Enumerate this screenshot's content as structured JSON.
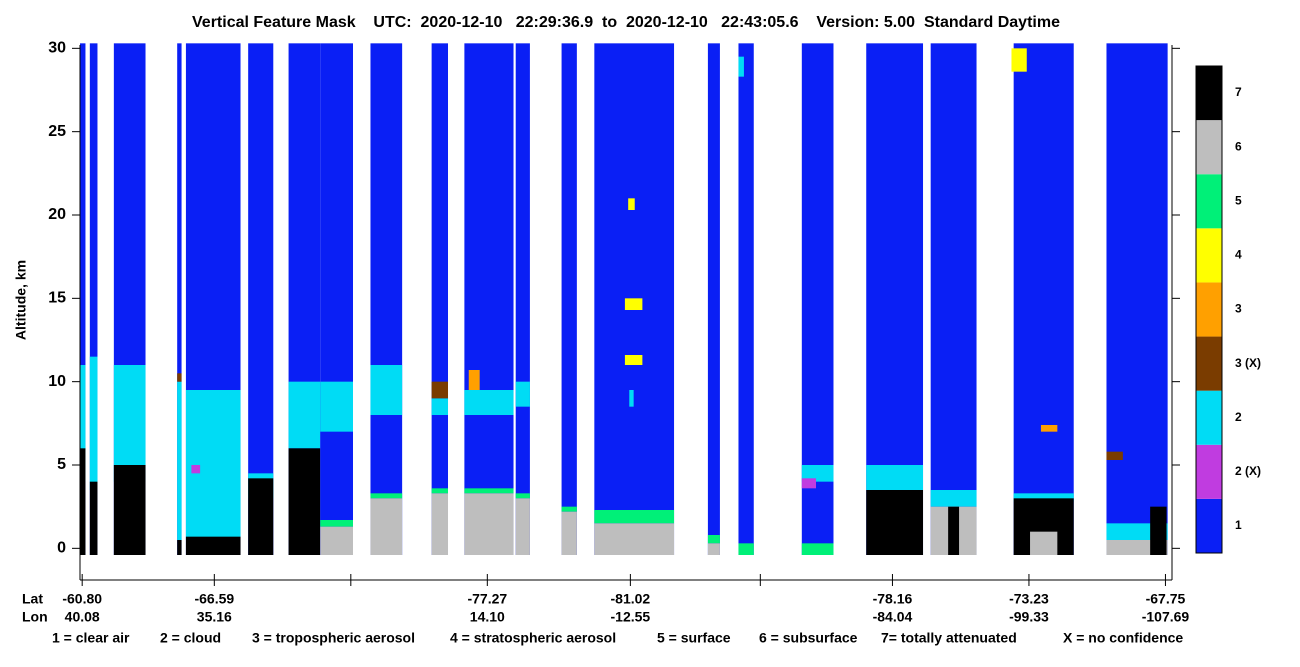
{
  "chart_data": {
    "type": "curtain",
    "title": "Vertical Feature Mask    UTC:  2020-12-10   22:29:36.9  to  2020-12-10   22:43:05.6    Version: 5.00  Standard Daytime",
    "ylabel": "Altitude, km",
    "ylim": [
      -1.9,
      30.2
    ],
    "yticks": [
      0,
      5,
      10,
      15,
      20,
      25,
      30
    ],
    "xlim": [
      0,
      100
    ],
    "xticks": [
      0.2,
      12.3,
      24.8,
      37.3,
      50.4,
      62.3,
      74.4,
      86.9,
      99.4
    ],
    "lat_header": "Lat",
    "lon_header": "Lon",
    "lat_labels": [
      "-60.80",
      "-66.59",
      null,
      "-77.27",
      "-81.02",
      null,
      "-78.16",
      "-73.23",
      "-67.75"
    ],
    "lon_labels": [
      "40.08",
      "35.16",
      null,
      "14.10",
      "-12.55",
      null,
      "-84.04",
      "-99.33",
      "-107.69"
    ],
    "levels": [
      {
        "label": "1",
        "color": "#0a1ff5"
      },
      {
        "label": "2 (X)",
        "color": "#c03ce0"
      },
      {
        "label": "2",
        "color": "#00dcf5"
      },
      {
        "label": "3 (X)",
        "color": "#7a3c00"
      },
      {
        "label": "3",
        "color": "#ffa000"
      },
      {
        "label": "4",
        "color": "#ffff00"
      },
      {
        "label": "5",
        "color": "#00f078"
      },
      {
        "label": "6",
        "color": "#bebebe"
      },
      {
        "label": "7",
        "color": "#000000"
      }
    ],
    "features": [
      {
        "class": 0,
        "x": [
          0,
          0.5
        ],
        "y": [
          -0.4,
          30.3
        ]
      },
      {
        "class": 2,
        "x": [
          0,
          0.5
        ],
        "y": [
          4,
          11
        ]
      },
      {
        "class": 8,
        "x": [
          0,
          0.5
        ],
        "y": [
          -0.4,
          6
        ]
      },
      {
        "class": 0,
        "x": [
          0.9,
          1.6
        ],
        "y": [
          -0.4,
          30.3
        ]
      },
      {
        "class": 2,
        "x": [
          0.9,
          1.6
        ],
        "y": [
          3.5,
          11.5
        ]
      },
      {
        "class": 8,
        "x": [
          0.9,
          1.6
        ],
        "y": [
          -0.4,
          4
        ]
      },
      {
        "class": 0,
        "x": [
          3.1,
          6.0
        ],
        "y": [
          -0.4,
          30.3
        ]
      },
      {
        "class": 2,
        "x": [
          3.1,
          6.0
        ],
        "y": [
          4,
          11
        ]
      },
      {
        "class": 8,
        "x": [
          3.1,
          6.0
        ],
        "y": [
          -0.4,
          5
        ]
      },
      {
        "class": 0,
        "x": [
          8.9,
          9.3
        ],
        "y": [
          -0.4,
          30.3
        ]
      },
      {
        "class": 2,
        "x": [
          8.9,
          9.3
        ],
        "y": [
          0.5,
          10
        ]
      },
      {
        "class": 3,
        "x": [
          8.9,
          9.3
        ],
        "y": [
          10,
          10.5
        ]
      },
      {
        "class": 8,
        "x": [
          8.9,
          9.3
        ],
        "y": [
          -0.4,
          0.5
        ]
      },
      {
        "class": 0,
        "x": [
          9.7,
          14.7
        ],
        "y": [
          -0.4,
          30.3
        ]
      },
      {
        "class": 2,
        "x": [
          9.7,
          14.7
        ],
        "y": [
          0.5,
          9.5
        ]
      },
      {
        "class": 1,
        "x": [
          10.2,
          11.0
        ],
        "y": [
          4.5,
          5
        ]
      },
      {
        "class": 8,
        "x": [
          9.7,
          14.7
        ],
        "y": [
          -0.4,
          0.7
        ]
      },
      {
        "class": 0,
        "x": [
          15.4,
          17.7
        ],
        "y": [
          -0.4,
          30.3
        ]
      },
      {
        "class": 2,
        "x": [
          15.4,
          17.7
        ],
        "y": [
          3,
          4.5
        ]
      },
      {
        "class": 8,
        "x": [
          15.4,
          17.7
        ],
        "y": [
          -0.4,
          4.2
        ]
      },
      {
        "class": 0,
        "x": [
          19.1,
          22.0
        ],
        "y": [
          -0.4,
          30.3
        ]
      },
      {
        "class": 2,
        "x": [
          19.1,
          22.0
        ],
        "y": [
          6,
          10
        ]
      },
      {
        "class": 8,
        "x": [
          19.1,
          22.0
        ],
        "y": [
          -0.4,
          6
        ]
      },
      {
        "class": 0,
        "x": [
          22.0,
          25.0
        ],
        "y": [
          -0.4,
          30.3
        ]
      },
      {
        "class": 2,
        "x": [
          22.0,
          25.0
        ],
        "y": [
          7,
          10
        ]
      },
      {
        "class": 6,
        "x": [
          22.0,
          25.0
        ],
        "y": [
          1.3,
          1.7
        ]
      },
      {
        "class": 7,
        "x": [
          22.0,
          25.0
        ],
        "y": [
          -0.4,
          1.3
        ]
      },
      {
        "class": 0,
        "x": [
          26.6,
          29.5
        ],
        "y": [
          -0.4,
          30.3
        ]
      },
      {
        "class": 2,
        "x": [
          26.6,
          29.5
        ],
        "y": [
          8,
          11
        ]
      },
      {
        "class": 6,
        "x": [
          26.6,
          29.5
        ],
        "y": [
          3,
          3.3
        ]
      },
      {
        "class": 7,
        "x": [
          26.6,
          29.5
        ],
        "y": [
          -0.4,
          3
        ]
      },
      {
        "class": 0,
        "x": [
          32.2,
          33.7
        ],
        "y": [
          -0.4,
          30.3
        ]
      },
      {
        "class": 2,
        "x": [
          32.2,
          33.7
        ],
        "y": [
          8,
          9
        ]
      },
      {
        "class": 3,
        "x": [
          32.2,
          33.7
        ],
        "y": [
          9,
          10
        ]
      },
      {
        "class": 6,
        "x": [
          32.2,
          33.7
        ],
        "y": [
          3.3,
          3.6
        ]
      },
      {
        "class": 7,
        "x": [
          32.2,
          33.7
        ],
        "y": [
          -0.4,
          3.3
        ]
      },
      {
        "class": 0,
        "x": [
          35.2,
          39.7
        ],
        "y": [
          -0.4,
          30.3
        ]
      },
      {
        "class": 2,
        "x": [
          35.2,
          39.7
        ],
        "y": [
          8,
          9.5
        ]
      },
      {
        "class": 4,
        "x": [
          35.6,
          36.6
        ],
        "y": [
          9.5,
          10.7
        ]
      },
      {
        "class": 6,
        "x": [
          35.2,
          39.7
        ],
        "y": [
          3.3,
          3.6
        ]
      },
      {
        "class": 7,
        "x": [
          35.2,
          39.7
        ],
        "y": [
          -0.4,
          3.3
        ]
      },
      {
        "class": 0,
        "x": [
          39.9,
          41.2
        ],
        "y": [
          -0.4,
          30.3
        ]
      },
      {
        "class": 2,
        "x": [
          39.9,
          41.2
        ],
        "y": [
          8.5,
          10
        ]
      },
      {
        "class": 6,
        "x": [
          39.9,
          41.2
        ],
        "y": [
          3,
          3.3
        ]
      },
      {
        "class": 7,
        "x": [
          39.9,
          41.2
        ],
        "y": [
          -0.4,
          3
        ]
      },
      {
        "class": 0,
        "x": [
          44.1,
          45.5
        ],
        "y": [
          -0.4,
          30.3
        ]
      },
      {
        "class": 6,
        "x": [
          44.1,
          45.5
        ],
        "y": [
          2.2,
          2.5
        ]
      },
      {
        "class": 7,
        "x": [
          44.1,
          45.5
        ],
        "y": [
          -0.4,
          2.2
        ]
      },
      {
        "class": 0,
        "x": [
          47.1,
          54.4
        ],
        "y": [
          -0.4,
          30.3
        ]
      },
      {
        "class": 5,
        "x": [
          50.2,
          50.8
        ],
        "y": [
          20.3,
          21
        ]
      },
      {
        "class": 5,
        "x": [
          49.9,
          51.5
        ],
        "y": [
          14.3,
          15
        ]
      },
      {
        "class": 5,
        "x": [
          49.9,
          51.5
        ],
        "y": [
          11,
          11.6
        ]
      },
      {
        "class": 2,
        "x": [
          50.3,
          50.7
        ],
        "y": [
          8.5,
          9.5
        ]
      },
      {
        "class": 6,
        "x": [
          47.1,
          54.4
        ],
        "y": [
          1.5,
          2.3
        ]
      },
      {
        "class": 7,
        "x": [
          47.1,
          54.4
        ],
        "y": [
          -0.4,
          1.5
        ]
      },
      {
        "class": 0,
        "x": [
          57.5,
          58.6
        ],
        "y": [
          -0.4,
          30.3
        ]
      },
      {
        "class": 6,
        "x": [
          57.5,
          58.6
        ],
        "y": [
          0.3,
          0.8
        ]
      },
      {
        "class": 7,
        "x": [
          57.5,
          58.6
        ],
        "y": [
          -0.4,
          0.3
        ]
      },
      {
        "class": 0,
        "x": [
          60.3,
          61.7
        ],
        "y": [
          -0.4,
          30.3
        ]
      },
      {
        "class": 2,
        "x": [
          60.3,
          60.8
        ],
        "y": [
          28.3,
          29.5
        ]
      },
      {
        "class": 6,
        "x": [
          60.3,
          61.7
        ],
        "y": [
          -0.4,
          0.3
        ]
      },
      {
        "class": 0,
        "x": [
          66.1,
          69.0
        ],
        "y": [
          -0.4,
          30.3
        ]
      },
      {
        "class": 2,
        "x": [
          66.1,
          69.0
        ],
        "y": [
          4,
          5
        ]
      },
      {
        "class": 1,
        "x": [
          66.1,
          67.4
        ],
        "y": [
          3.6,
          4.2
        ]
      },
      {
        "class": 6,
        "x": [
          66.1,
          69.0
        ],
        "y": [
          -0.4,
          0.3
        ]
      },
      {
        "class": 0,
        "x": [
          72.0,
          77.2
        ],
        "y": [
          -0.4,
          30.3
        ]
      },
      {
        "class": 2,
        "x": [
          72.0,
          77.2
        ],
        "y": [
          3.5,
          5
        ]
      },
      {
        "class": 8,
        "x": [
          72.0,
          77.2
        ],
        "y": [
          -0.4,
          3.5
        ]
      },
      {
        "class": 0,
        "x": [
          77.9,
          82.1
        ],
        "y": [
          -0.4,
          30.3
        ]
      },
      {
        "class": 2,
        "x": [
          77.9,
          82.1
        ],
        "y": [
          2.5,
          3.5
        ]
      },
      {
        "class": 7,
        "x": [
          77.9,
          82.1
        ],
        "y": [
          -0.4,
          2.5
        ]
      },
      {
        "class": 8,
        "x": [
          79.5,
          80.5
        ],
        "y": [
          -0.4,
          2.5
        ]
      },
      {
        "class": 0,
        "x": [
          85.5,
          91.0
        ],
        "y": [
          -0.4,
          30.3
        ]
      },
      {
        "class": 5,
        "x": [
          85.3,
          86.7
        ],
        "y": [
          28.6,
          30
        ]
      },
      {
        "class": 4,
        "x": [
          88.0,
          89.5
        ],
        "y": [
          7,
          7.4
        ]
      },
      {
        "class": 2,
        "x": [
          85.5,
          91.0
        ],
        "y": [
          2.8,
          3.3
        ]
      },
      {
        "class": 8,
        "x": [
          85.5,
          91.0
        ],
        "y": [
          -0.4,
          3
        ]
      },
      {
        "class": 7,
        "x": [
          87.0,
          89.5
        ],
        "y": [
          -0.4,
          1
        ]
      },
      {
        "class": 0,
        "x": [
          94.0,
          99.6
        ],
        "y": [
          -0.4,
          30.3
        ]
      },
      {
        "class": 3,
        "x": [
          94.0,
          95.5
        ],
        "y": [
          5.3,
          5.8
        ]
      },
      {
        "class": 2,
        "x": [
          94.0,
          99.6
        ],
        "y": [
          0.5,
          1.5
        ]
      },
      {
        "class": 7,
        "x": [
          94.0,
          99.6
        ],
        "y": [
          -0.4,
          0.5
        ]
      },
      {
        "class": 8,
        "x": [
          98.0,
          99.5
        ],
        "y": [
          -0.4,
          2.5
        ]
      }
    ],
    "legend": [
      "1 = clear air",
      "2 = cloud",
      "3 = tropospheric aerosol",
      "4 = stratospheric aerosol",
      "5 = surface",
      "6 = subsurface",
      "7= totally attenuated",
      "X = no confidence"
    ]
  }
}
